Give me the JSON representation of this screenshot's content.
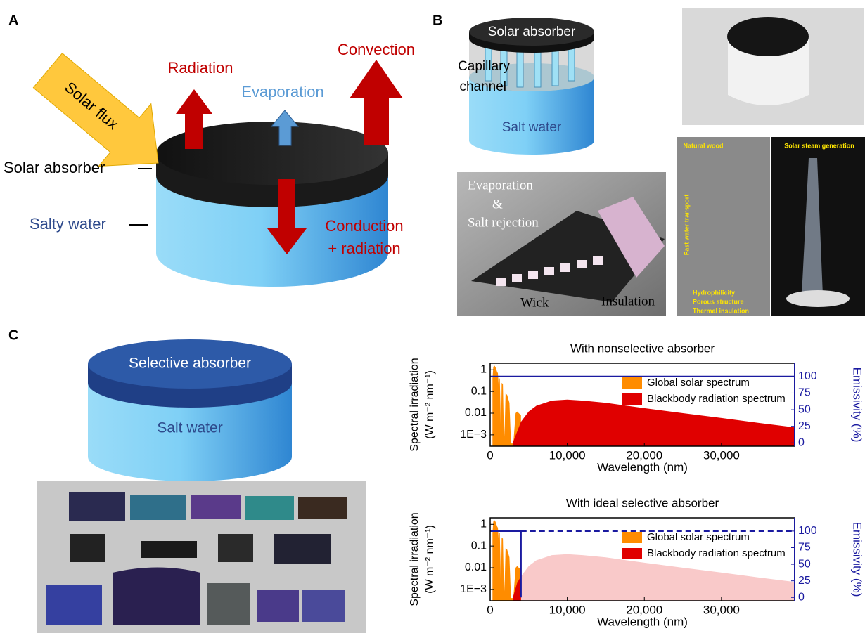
{
  "panel_a": {
    "label": "A",
    "solar_flux": "Solar flux",
    "radiation": "Radiation",
    "evaporation": "Evaporation",
    "convection": "Convection",
    "solar_absorber": "Solar absorber",
    "salty_water": "Salty water",
    "conduction": [
      "Conduction",
      "+ radiation"
    ]
  },
  "panel_b": {
    "label": "B",
    "solar_absorber": "Solar absorber",
    "capillary_channel": [
      "Capillary",
      "channel"
    ],
    "salt_water": "Salt water",
    "wick_photo": {
      "evaporation": "Evaporation",
      "and": "&",
      "salt_rejection": "Salt rejection",
      "wick": "Wick",
      "insulation": "Insulation"
    },
    "wood_photo": {
      "natural_wood": "Natural wood",
      "steam": "Solar steam generation",
      "transport": "Fast water transport",
      "bullets": [
        "Hydrophilicity",
        "Porous structure",
        "Thermal insulation"
      ]
    }
  },
  "panel_c": {
    "label": "C",
    "selective_absorber": "Selective absorber",
    "salt_water": "Salt water"
  },
  "chart_data": [
    {
      "type": "area",
      "title": "With nonselective absorber",
      "xlabel": "Wavelength (nm)",
      "ylabel": [
        "Spectral irradiation",
        "(W m⁻² nm⁻¹)"
      ],
      "y2label": "Emissivity (%)",
      "xlim": [
        0,
        39500
      ],
      "xticks": [
        0,
        {
          "value": 10000,
          "label": "10,000"
        },
        {
          "value": 20000,
          "label": "20,000"
        },
        {
          "value": 30000,
          "label": "30,000"
        }
      ],
      "yscale": "log",
      "ylim": [
        0.0003,
        2
      ],
      "yticks": [
        {
          "value": 0.001,
          "label": "1E−3"
        },
        0.01,
        0.1,
        1
      ],
      "y2lim": [
        -5,
        120
      ],
      "y2ticks": [
        0,
        25,
        50,
        75,
        100
      ],
      "legend": "upper right",
      "series": [
        {
          "name": "Global solar spectrum",
          "color": "#ff8c00",
          "x": [
            300,
            400,
            500,
            600,
            700,
            900,
            1000,
            1100,
            1150,
            1250,
            1350,
            1400,
            1500,
            1650,
            1800,
            1900,
            2000,
            2200,
            2500,
            2700,
            3000,
            3300,
            3500,
            4000
          ],
          "values": [
            0.4,
            1.3,
            1.6,
            1.5,
            1.3,
            0.8,
            0.7,
            0.2,
            0.4,
            0.4,
            0.01,
            0.0005,
            0.25,
            0.22,
            0.0005,
            0.003,
            0.08,
            0.07,
            0.03,
            0.0004,
            0.0004,
            0.01,
            0.012,
            0.008
          ]
        },
        {
          "name": "Blackbody radiation spectrum",
          "color": "#e00000",
          "x": [
            3000,
            4000,
            5000,
            6000,
            8000,
            10000,
            12000,
            15000,
            20000,
            25000,
            30000,
            35000,
            39500
          ],
          "values": [
            0.0005,
            0.004,
            0.012,
            0.022,
            0.038,
            0.042,
            0.038,
            0.03,
            0.017,
            0.01,
            0.006,
            0.0035,
            0.0022
          ]
        },
        {
          "color": "#1a1aa0",
          "axis": "y2",
          "x": [
            0,
            39500
          ],
          "values": [
            100,
            100
          ]
        }
      ]
    },
    {
      "type": "area",
      "title": "With ideal selective absorber",
      "xlabel": "Wavelength (nm)",
      "ylabel": [
        "Spectral irradiation",
        "(W m⁻² nm⁻¹)"
      ],
      "y2label": "Emissivity (%)",
      "xlim": [
        0,
        39500
      ],
      "xticks": [
        0,
        {
          "value": 10000,
          "label": "10,000"
        },
        {
          "value": 20000,
          "label": "20,000"
        },
        {
          "value": 30000,
          "label": "30,000"
        }
      ],
      "yscale": "log",
      "ylim": [
        0.0003,
        2
      ],
      "yticks": [
        {
          "value": 0.001,
          "label": "1E−3"
        },
        0.01,
        0.1,
        1
      ],
      "y2lim": [
        -5,
        120
      ],
      "y2ticks": [
        0,
        25,
        50,
        75,
        100
      ],
      "legend": "upper right",
      "series": [
        {
          "color": "#f9c9c9",
          "x": [
            3000,
            4000,
            5000,
            6000,
            8000,
            10000,
            12000,
            15000,
            20000,
            25000,
            30000,
            35000,
            39500
          ],
          "values": [
            0.0005,
            0.004,
            0.012,
            0.022,
            0.038,
            0.042,
            0.038,
            0.03,
            0.017,
            0.01,
            0.006,
            0.0035,
            0.0022
          ]
        },
        {
          "name": "Global solar spectrum",
          "color": "#ff8c00",
          "x": [
            300,
            400,
            500,
            600,
            700,
            900,
            1000,
            1100,
            1150,
            1250,
            1350,
            1400,
            1500,
            1650,
            1800,
            1900,
            2000,
            2200,
            2500,
            2700,
            3000,
            3300,
            3500,
            4000
          ],
          "values": [
            0.4,
            1.3,
            1.6,
            1.5,
            1.3,
            0.8,
            0.7,
            0.2,
            0.4,
            0.4,
            0.01,
            0.0005,
            0.25,
            0.22,
            0.0005,
            0.003,
            0.08,
            0.07,
            0.03,
            0.0004,
            0.0004,
            0.01,
            0.012,
            0.008
          ]
        },
        {
          "name": "Blackbody radiation spectrum",
          "color": "#e00000",
          "x": [
            3000,
            3500,
            4000
          ],
          "values": [
            0.0005,
            0.002,
            0.004
          ]
        },
        {
          "color": "#1a1aa0",
          "axis": "y2",
          "x": [
            0,
            4000,
            4000
          ],
          "values": [
            100,
            100,
            0
          ]
        },
        {
          "color": "#1a1aa0",
          "axis": "y2",
          "dash": true,
          "x": [
            4000,
            39500
          ],
          "values": [
            100,
            100
          ]
        }
      ]
    }
  ]
}
